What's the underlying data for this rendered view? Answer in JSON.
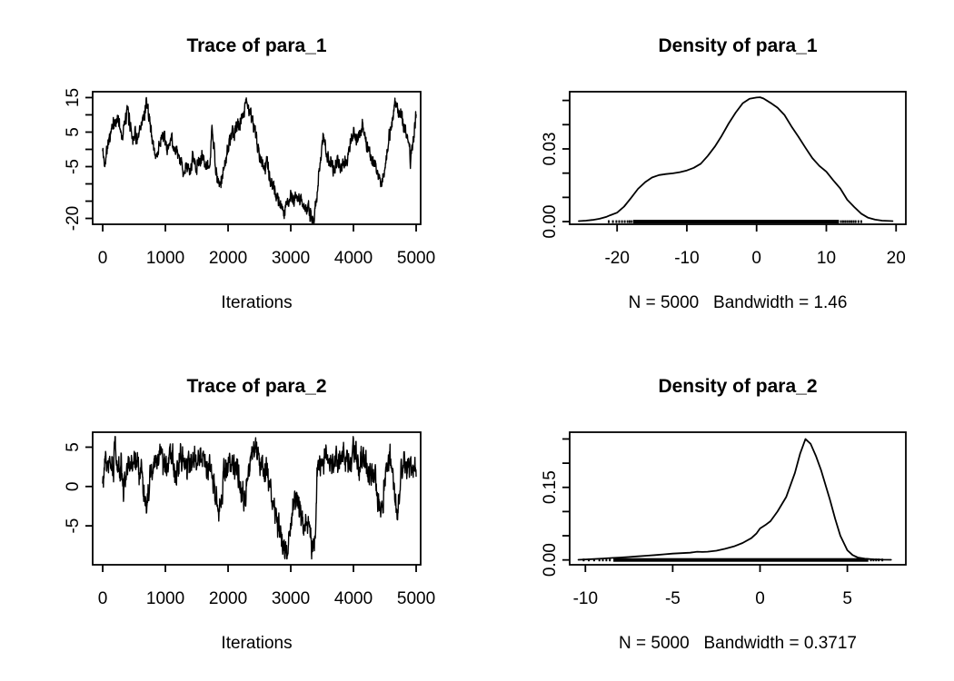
{
  "colors": {
    "background": "#ffffff",
    "foreground": "#000000"
  },
  "chart_data": [
    {
      "id": "trace-para-1",
      "type": "line",
      "subtype": "mcmc-trace",
      "title": "Trace of para_1",
      "xlabel": "Iterations",
      "xlim": [
        -160,
        5072
      ],
      "ylim": [
        -21.7,
        16.7
      ],
      "xticks": {
        "values": [
          0,
          1000,
          2000,
          3000,
          4000,
          5000
        ],
        "labels": [
          "0",
          "1000",
          "2000",
          "3000",
          "4000",
          "5000"
        ]
      },
      "yticks": {
        "values": [
          15,
          10,
          5,
          0,
          -5,
          -10,
          -15,
          -20
        ],
        "labels": [
          "15",
          "",
          "5",
          "",
          "-5",
          "",
          "",
          "-20"
        ]
      },
      "series": {
        "x": [
          0,
          30,
          60,
          100,
          150,
          200,
          250,
          300,
          350,
          400,
          430,
          480,
          520,
          560,
          600,
          650,
          700,
          740,
          780,
          820,
          850,
          900,
          950,
          1000,
          1050,
          1100,
          1150,
          1200,
          1250,
          1300,
          1350,
          1400,
          1430,
          1460,
          1500,
          1550,
          1600,
          1650,
          1700,
          1740,
          1780,
          1820,
          1860,
          1900,
          1950,
          2000,
          2050,
          2100,
          2150,
          2200,
          2250,
          2300,
          2340,
          2380,
          2420,
          2460,
          2500,
          2540,
          2580,
          2620,
          2660,
          2700,
          2750,
          2800,
          2850,
          2900,
          2950,
          3000,
          3050,
          3100,
          3150,
          3200,
          3250,
          3280,
          3320,
          3370,
          3400,
          3430,
          3460,
          3500,
          3530,
          3560,
          3600,
          3650,
          3700,
          3750,
          3800,
          3850,
          3900,
          3950,
          4000,
          4050,
          4100,
          4150,
          4200,
          4250,
          4300,
          4350,
          4400,
          4450,
          4500,
          4550,
          4600,
          4640,
          4680,
          4720,
          4760,
          4800,
          4850,
          4880,
          4910,
          4940,
          4970,
          5000
        ],
        "y": [
          -0.5,
          -4.8,
          0.5,
          3,
          6,
          7.5,
          9.5,
          4,
          7,
          11,
          8,
          3.5,
          5,
          2,
          5,
          9,
          14.2,
          10,
          4,
          0,
          -2.5,
          1,
          4,
          1,
          0,
          3.5,
          -0.5,
          -2,
          -4,
          -6,
          -5,
          -7.5,
          -1,
          -3,
          -5.5,
          -3.5,
          -2,
          -5.5,
          -6,
          6,
          -1,
          -8,
          -11.5,
          -8.5,
          -4,
          0.5,
          3,
          5,
          6.5,
          8.5,
          11,
          15,
          11,
          8.5,
          6,
          3,
          -0.5,
          -4,
          -6,
          -3.5,
          -8,
          -10,
          -12,
          -14,
          -16.5,
          -19,
          -15,
          -13,
          -15.5,
          -12.5,
          -14.5,
          -16.5,
          -18,
          -16,
          -20,
          -21,
          -16,
          -10,
          -4,
          1,
          3.5,
          0,
          -2.5,
          -4.5,
          -5.5,
          -3,
          -6,
          -4.5,
          -1.5,
          1.5,
          5.5,
          1,
          4,
          6.5,
          3,
          -1,
          -4.5,
          -3,
          -7.5,
          -11,
          -5,
          1,
          6.5,
          10.5,
          14,
          9.5,
          11,
          7,
          4.5,
          2,
          -3,
          1,
          6,
          9.5
        ]
      }
    },
    {
      "id": "density-para-1",
      "type": "line",
      "subtype": "density",
      "title": "Density of para_1",
      "xlabel": "N = 5000   Bandwidth = 1.46",
      "n": 5000,
      "bandwidth": 1.46,
      "xlim": [
        -26.8,
        21.4
      ],
      "ylim": [
        -0.0011,
        0.0536
      ],
      "xticks": {
        "values": [
          -20,
          -10,
          0,
          10,
          20
        ],
        "labels": [
          "-20",
          "-10",
          "0",
          "10",
          "20"
        ]
      },
      "yticks": {
        "values": [
          0,
          0.01,
          0.02,
          0.03,
          0.04,
          0.05
        ],
        "labels": [
          "0.00",
          "",
          "",
          "0.03",
          "",
          ""
        ]
      },
      "curve": {
        "x": [
          -25.5,
          -24.5,
          -23.5,
          -22.5,
          -21.5,
          -21,
          -20,
          -19,
          -18,
          -17,
          -16,
          -15,
          -14,
          -13,
          -12,
          -11,
          -10,
          -9,
          -8,
          -7,
          -6,
          -5,
          -4,
          -3,
          -2,
          -1,
          0,
          0.5,
          1,
          2,
          3,
          4,
          5,
          6,
          7,
          8,
          9,
          10,
          11,
          12,
          13,
          14,
          15,
          16,
          17,
          18,
          19.5
        ],
        "y": [
          0.0002,
          0.0004,
          0.0007,
          0.0012,
          0.002,
          0.0026,
          0.0037,
          0.0062,
          0.0098,
          0.0135,
          0.0162,
          0.0182,
          0.0192,
          0.0196,
          0.0199,
          0.0204,
          0.0211,
          0.0222,
          0.0239,
          0.0271,
          0.0309,
          0.0354,
          0.0405,
          0.045,
          0.0488,
          0.0507,
          0.0512,
          0.0513,
          0.0508,
          0.049,
          0.047,
          0.044,
          0.0393,
          0.035,
          0.0305,
          0.0262,
          0.023,
          0.0206,
          0.017,
          0.0137,
          0.009,
          0.006,
          0.0033,
          0.0016,
          0.0008,
          0.0004,
          0.0002
        ]
      },
      "rug": {
        "solid": [
          -17.7,
          11.8
        ],
        "sparse": [
          -21.2,
          -20.6,
          -20.1,
          -19.7,
          -19.3,
          -18.9,
          -18.5,
          -18.2,
          -17.9,
          12.1,
          12.4,
          12.7,
          13,
          13.3,
          13.6,
          13.9,
          14.2,
          14.6,
          15
        ]
      }
    },
    {
      "id": "trace-para-2",
      "type": "line",
      "subtype": "mcmc-trace",
      "title": "Trace of para_2",
      "xlabel": "Iterations",
      "xlim": [
        -160,
        5072
      ],
      "ylim": [
        -9.95,
        6.9
      ],
      "xticks": {
        "values": [
          0,
          1000,
          2000,
          3000,
          4000,
          5000
        ],
        "labels": [
          "0",
          "1000",
          "2000",
          "3000",
          "4000",
          "5000"
        ]
      },
      "yticks": {
        "values": [
          5,
          0,
          -5
        ],
        "labels": [
          "5",
          "0",
          "-5"
        ]
      },
      "series": {
        "x": [
          0,
          30,
          80,
          120,
          170,
          200,
          230,
          270,
          300,
          330,
          370,
          420,
          470,
          520,
          570,
          620,
          660,
          700,
          730,
          760,
          800,
          850,
          900,
          950,
          1000,
          1050,
          1100,
          1150,
          1200,
          1250,
          1300,
          1350,
          1400,
          1450,
          1500,
          1550,
          1600,
          1650,
          1700,
          1750,
          1800,
          1850,
          1900,
          1950,
          2000,
          2050,
          2100,
          2150,
          2200,
          2250,
          2300,
          2350,
          2400,
          2450,
          2500,
          2550,
          2600,
          2650,
          2700,
          2750,
          2800,
          2850,
          2900,
          2950,
          3000,
          3050,
          3100,
          3150,
          3200,
          3250,
          3300,
          3350,
          3390,
          3420,
          3450,
          3500,
          3550,
          3600,
          3650,
          3700,
          3750,
          3800,
          3850,
          3900,
          3950,
          4000,
          4050,
          4100,
          4150,
          4200,
          4250,
          4300,
          4350,
          4400,
          4450,
          4500,
          4550,
          4600,
          4650,
          4700,
          4750,
          4800,
          4850,
          4900,
          4950,
          5000
        ],
        "y": [
          0.3,
          3.8,
          2.2,
          3.2,
          1.8,
          6.2,
          2.0,
          1.0,
          2.8,
          0.2,
          1.2,
          2.6,
          3.8,
          3.2,
          2.2,
          1.4,
          -0.8,
          -3.6,
          -1.2,
          1.4,
          3.2,
          3.8,
          4.2,
          3.2,
          2.6,
          3.6,
          3.8,
          2.4,
          2.8,
          3.4,
          2.6,
          2.0,
          3.0,
          3.8,
          3.2,
          4.2,
          3.6,
          2.8,
          2.4,
          0.8,
          -1.2,
          -3.2,
          -0.8,
          1.6,
          2.6,
          3.2,
          2.8,
          1.6,
          0.6,
          -1.8,
          0.4,
          2.8,
          4.6,
          5.0,
          3.4,
          1.8,
          2.8,
          0.8,
          -1.4,
          -3.2,
          -5.2,
          -6.6,
          -7.8,
          -8.2,
          -5.4,
          -2.2,
          -1.2,
          -3.6,
          -5.2,
          -4.2,
          -6.2,
          -8.8,
          -6.0,
          1.0,
          3.8,
          3.4,
          4.4,
          3.2,
          2.6,
          2.8,
          3.4,
          3.8,
          4.8,
          3.2,
          4.0,
          5.4,
          3.2,
          2.2,
          3.6,
          2.6,
          1.2,
          2.2,
          0.6,
          -2.2,
          -3.8,
          0.8,
          2.6,
          3.0,
          -0.8,
          -3.4,
          0.8,
          2.8,
          2.0,
          3.4,
          2.4,
          2.6
        ]
      }
    },
    {
      "id": "density-para-2",
      "type": "line",
      "subtype": "density",
      "title": "Density of para_2",
      "xlabel": "N = 5000   Bandwidth = 0.3717",
      "n": 5000,
      "bandwidth": 0.3717,
      "xlim": [
        -10.9,
        8.35
      ],
      "ylim": [
        -0.01,
        0.264
      ],
      "xticks": {
        "values": [
          -10,
          -5,
          0,
          5
        ],
        "labels": [
          "-10",
          "-5",
          "0",
          "5"
        ]
      },
      "yticks": {
        "values": [
          0,
          0.05,
          0.1,
          0.15,
          0.2,
          0.25
        ],
        "labels": [
          "0.00",
          "",
          "",
          "0.15",
          "",
          ""
        ]
      },
      "curve": {
        "x": [
          -10.4,
          -10,
          -9.5,
          -9,
          -8.5,
          -8,
          -7.5,
          -7,
          -6.5,
          -6,
          -5.5,
          -5,
          -4.5,
          -4,
          -3.6,
          -3.3,
          -3,
          -2.5,
          -2,
          -1.5,
          -1,
          -0.5,
          -0.2,
          0,
          0.3,
          0.6,
          1,
          1.5,
          2,
          2.3,
          2.6,
          2.9,
          3.2,
          3.5,
          4,
          4.3,
          4.6,
          5,
          5.3,
          5.6,
          6,
          6.5,
          7,
          7.5
        ],
        "y": [
          0.0004,
          0.001,
          0.0018,
          0.003,
          0.004,
          0.005,
          0.0062,
          0.0075,
          0.0088,
          0.01,
          0.0115,
          0.013,
          0.014,
          0.015,
          0.017,
          0.0165,
          0.017,
          0.019,
          0.023,
          0.028,
          0.035,
          0.045,
          0.055,
          0.065,
          0.072,
          0.08,
          0.1,
          0.13,
          0.18,
          0.22,
          0.25,
          0.24,
          0.215,
          0.185,
          0.125,
          0.085,
          0.05,
          0.02,
          0.01,
          0.005,
          0.0025,
          0.0012,
          0.0006,
          0.0003
        ]
      },
      "rug": {
        "solid": [
          -8.4,
          6.2
        ],
        "sparse": [
          -10.1,
          -9.8,
          -9.5,
          -9.2,
          -9,
          -8.8,
          -8.6,
          6.35,
          6.5,
          6.65,
          6.8,
          7.0
        ]
      }
    }
  ]
}
